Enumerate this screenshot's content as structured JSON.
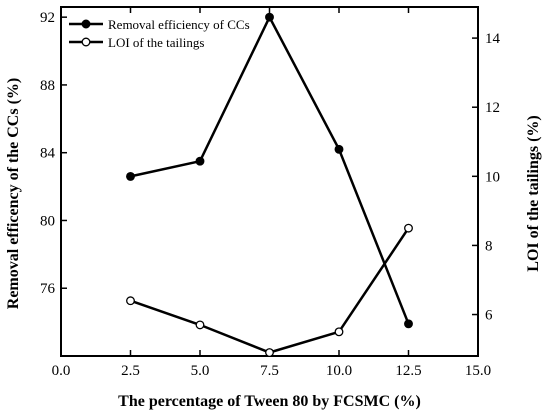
{
  "chart_data": {
    "type": "line",
    "xlabel": "The percentage of Tween 80 by FCSMC (%)",
    "ylabel_left": "Removal efficency of the CCs (%)",
    "ylabel_right": "LOI of the tailings (%)",
    "xlim": [
      0.0,
      15.0
    ],
    "ylim_left": [
      72,
      92.6
    ],
    "ylim_right": [
      4.8,
      14.9
    ],
    "x_ticks": [
      "0.0",
      "2.5",
      "5.0",
      "7.5",
      "10.0",
      "12.5",
      "15.0"
    ],
    "y_left_ticks": [
      "76",
      "80",
      "84",
      "88",
      "92"
    ],
    "y_right_ticks": [
      "6",
      "8",
      "10",
      "12",
      "14"
    ],
    "legend_position": "top-left",
    "grid": false,
    "series": [
      {
        "name": "Removal efficiency of CCs",
        "axis": "left",
        "marker": "filled-circle",
        "x": [
          2.5,
          5.0,
          7.5,
          10.0,
          12.5
        ],
        "y": [
          82.6,
          83.5,
          92.0,
          84.2,
          73.9
        ]
      },
      {
        "name": "LOI of the tailings",
        "axis": "right",
        "marker": "open-circle",
        "x": [
          2.5,
          5.0,
          7.5,
          10.0,
          12.5
        ],
        "y": [
          6.4,
          5.7,
          4.9,
          5.5,
          8.5
        ]
      }
    ]
  }
}
